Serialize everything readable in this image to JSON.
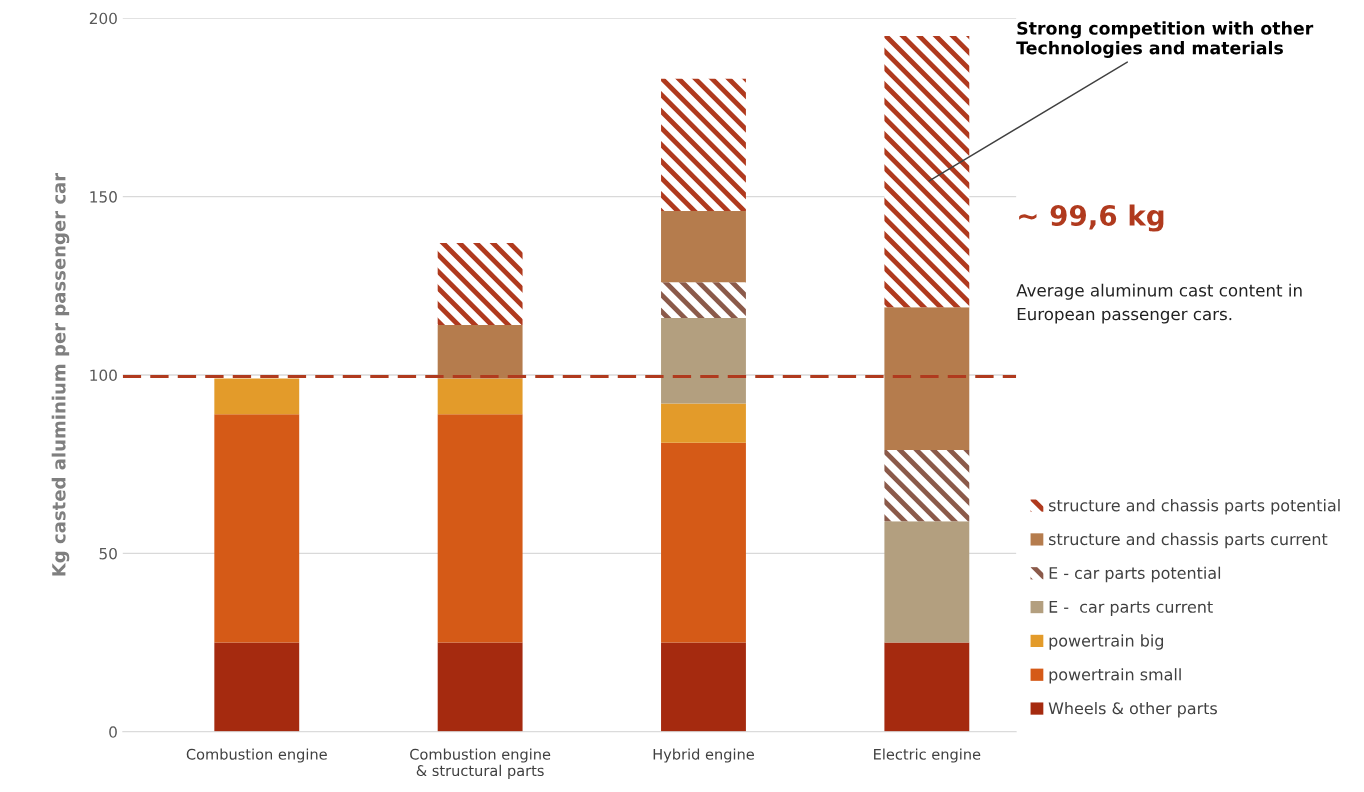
{
  "chart_data": {
    "type": "bar",
    "stacked": true,
    "ylabel": "Kg casted aluminium per passenger car",
    "categories": [
      "Combustion engine",
      "Combustion engine\n& structural parts",
      "Hybrid engine",
      "Electric engine"
    ],
    "series": [
      {
        "name": "Wheels & other parts",
        "color": "#a52a0f",
        "values": [
          25,
          25,
          25,
          25
        ]
      },
      {
        "name": "powertrain small",
        "color": "#d55a17",
        "values": [
          64,
          64,
          56,
          0
        ]
      },
      {
        "name": "powertrain big",
        "color": "#e39b2a",
        "values": [
          10,
          10,
          11,
          0
        ]
      },
      {
        "name": "E -  car parts current",
        "color": "#b39f7f",
        "values": [
          0,
          0,
          24,
          34
        ]
      },
      {
        "name": "E - car parts potential",
        "color": "#8b5a4a",
        "line_style": "dashed",
        "values": [
          0,
          0,
          10,
          20
        ]
      },
      {
        "name": "structure and chassis parts current",
        "color": "#b57c4d",
        "values": [
          0,
          15,
          20,
          40
        ]
      },
      {
        "name": "structure and chassis parts potential",
        "color": "#b03a1e",
        "line_style": "dashed",
        "values": [
          0,
          23,
          37,
          76
        ]
      }
    ],
    "ylim": [
      0,
      200
    ],
    "yticks": [
      0,
      50,
      100,
      150,
      200
    ],
    "grid": "y",
    "legend": "right",
    "ref_lines": [
      {
        "axis": "y",
        "value": 99.6,
        "label": "~ 99,6 kg",
        "color": "#b03a1e",
        "line_style": "dashed"
      }
    ],
    "annotations": [
      "Strong competition with other\nTechnologies and materials",
      "Average aluminum cast content in\nEuropean passenger cars."
    ]
  }
}
